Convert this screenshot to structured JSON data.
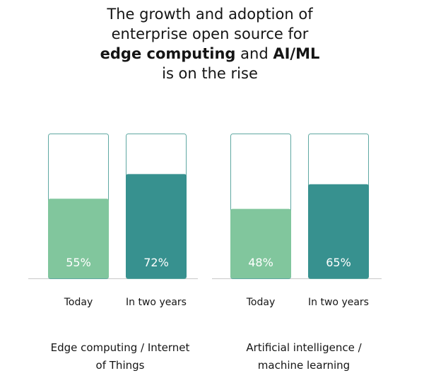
{
  "title": {
    "line1": "The growth and adoption of",
    "line2": "enterprise open source for",
    "line3_bold1": "edge computing",
    "line3_mid": " and ",
    "line3_bold2": "AI/ML",
    "line4": "is on the rise"
  },
  "colors": {
    "today": "#81c69d",
    "future": "#37918f",
    "outline": "#5fa8a2",
    "baseline": "#c9c9c9"
  },
  "chart_data": {
    "type": "bar",
    "title": "The growth and adoption of enterprise open source for edge computing and AI/ML is on the rise",
    "ylim": [
      0,
      100
    ],
    "grid": false,
    "groups": [
      {
        "label": "Edge computing / Internet of Things",
        "label_line1": "Edge computing / Internet",
        "label_line2": "of Things",
        "bars": [
          {
            "category": "Today",
            "value": 55,
            "label": "55%"
          },
          {
            "category": "In two years",
            "value": 72,
            "label": "72%"
          }
        ]
      },
      {
        "label": "Artificial intelligence / machine learning",
        "label_line1": "Artificial intelligence /",
        "label_line2": "machine learning",
        "bars": [
          {
            "category": "Today",
            "value": 48,
            "label": "48%"
          },
          {
            "category": "In two years",
            "value": 65,
            "label": "65%"
          }
        ]
      }
    ]
  }
}
